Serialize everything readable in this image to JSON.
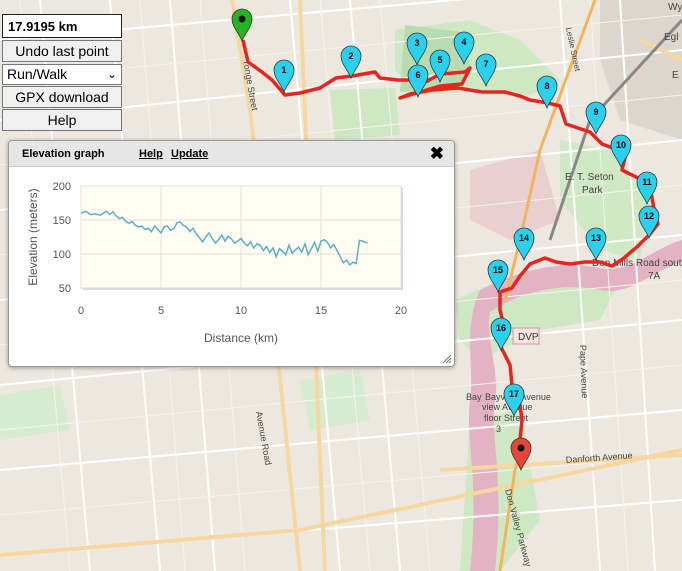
{
  "controls": {
    "distance": "17.9195 km",
    "undo_label": "Undo last point",
    "activity_selected": "Run/Walk",
    "gpx_label": "GPX download",
    "help_label": "Help"
  },
  "popup": {
    "title": "Elevation graph",
    "help_link": "Help",
    "update_link": "Update"
  },
  "markers": [
    "1",
    "2",
    "3",
    "4",
    "5",
    "6",
    "7",
    "8",
    "9",
    "10",
    "11",
    "12",
    "13",
    "14",
    "15",
    "16",
    "17"
  ],
  "map_labels": {
    "yonge": "Yonge Street",
    "avenue_road": "Avenue Road",
    "bayview": "Bayview Avenue",
    "pape": "Pape Avenue",
    "danforth": "Danforth Avenue",
    "dvp": "DVP",
    "dvp_parkway": "Don Valley Parkway",
    "don_mills": "Don Mills Road south",
    "route_7a": "7A",
    "seton": "E. T. Seton",
    "park": "Park",
    "bay": "Bay",
    "view_avenue": "view Avenue",
    "floor_street": "floor Street",
    "num3": "3",
    "leslie": "Leslie Street",
    "wy": "Wy",
    "egl": "Egl",
    "e": "E"
  },
  "colors": {
    "route": "#e8241f",
    "marker": "#2ad1ee",
    "start_marker": "#22b522",
    "end_marker": "#e8443a",
    "line": "#5aafc7",
    "plot_bg": "#fffcf2"
  },
  "chart_data": {
    "type": "line",
    "xlabel": "Distance (km)",
    "ylabel": "Elevation (meters)",
    "xlim": [
      0,
      20
    ],
    "ylim": [
      50,
      200
    ],
    "xticks": [
      "0",
      "5",
      "10",
      "15",
      "20"
    ],
    "yticks": [
      "50",
      "100",
      "150",
      "200"
    ],
    "grid": true,
    "series": [
      {
        "x": [
          0,
          0.3,
          0.6,
          0.9,
          1.2,
          1.4,
          1.6,
          1.8,
          2.0,
          2.2,
          2.4,
          2.6,
          2.8,
          3.0,
          3.2,
          3.4,
          3.6,
          3.8,
          4.0,
          4.2,
          4.4,
          4.6,
          4.8,
          5.0,
          5.2,
          5.4,
          5.6,
          5.8,
          6.0,
          6.2,
          6.4,
          6.6,
          6.8,
          7.0,
          7.2,
          7.4,
          7.6,
          7.8,
          8.0,
          8.2,
          8.4,
          8.6,
          8.8,
          9.0,
          9.2,
          9.4,
          9.6,
          9.8,
          10.0,
          10.2,
          10.4,
          10.6,
          10.8,
          11.0,
          11.2,
          11.4,
          11.6,
          11.8,
          12.0,
          12.2,
          12.4,
          12.6,
          12.8,
          13.0,
          13.2,
          13.4,
          13.6,
          13.8,
          14.0,
          14.2,
          14.4,
          14.6,
          14.8,
          15.0,
          15.2,
          15.4,
          15.6,
          15.8,
          16.0,
          16.2,
          16.4,
          16.6,
          16.8,
          17.0,
          17.2,
          17.4,
          17.6,
          17.9
        ],
        "y": [
          160,
          163,
          158,
          159,
          157,
          160,
          163,
          158,
          162,
          156,
          152,
          154,
          148,
          145,
          148,
          142,
          140,
          141,
          136,
          138,
          133,
          141,
          136,
          131,
          140,
          141,
          135,
          137,
          146,
          147,
          142,
          140,
          133,
          138,
          130,
          124,
          118,
          125,
          131,
          123,
          116,
          121,
          128,
          119,
          126,
          122,
          116,
          119,
          123,
          116,
          112,
          118,
          109,
          115,
          113,
          105,
          111,
          102,
          109,
          96,
          108,
          104,
          99,
          113,
          101,
          106,
          110,
          103,
          115,
          99,
          108,
          117,
          104,
          119,
          121,
          117,
          109,
          114,
          105,
          96,
          87,
          91,
          84,
          88,
          86,
          120,
          119,
          116
        ]
      }
    ]
  }
}
